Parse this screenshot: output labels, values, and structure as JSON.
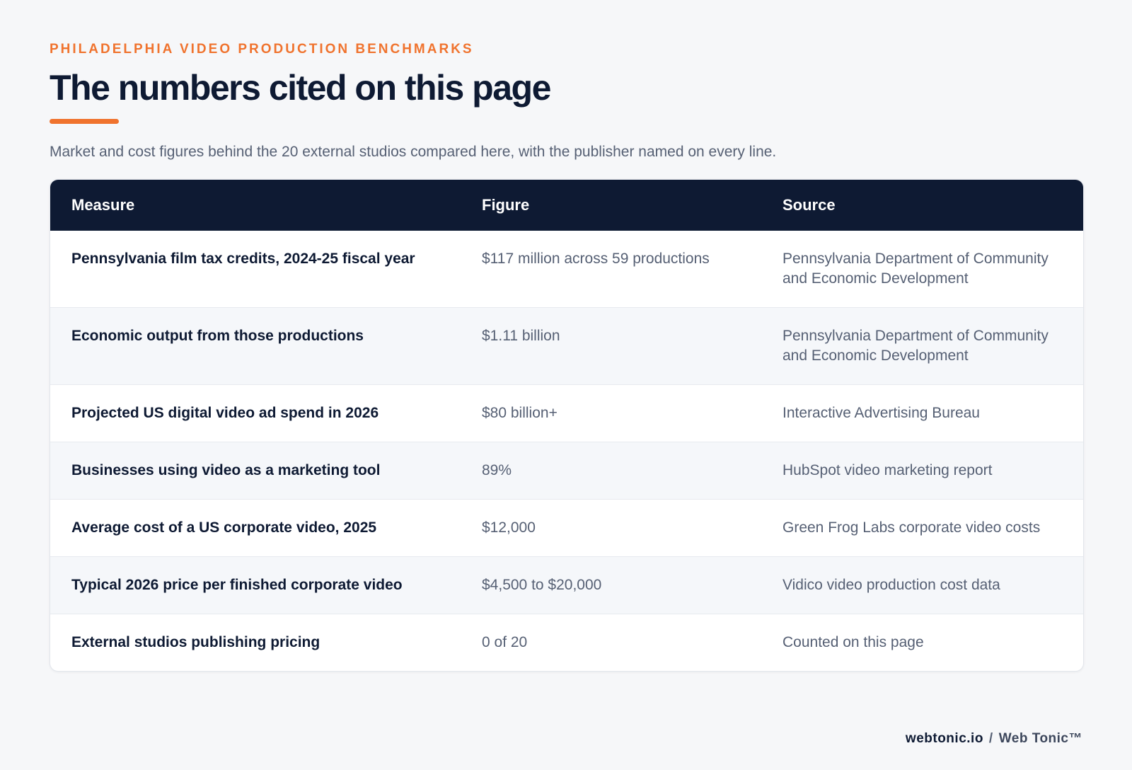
{
  "header": {
    "eyebrow": "PHILADELPHIA VIDEO PRODUCTION BENCHMARKS",
    "title": "The numbers cited on this page",
    "subtitle": "Market and cost figures behind the 20 external studios compared here, with the publisher named on every line."
  },
  "colors": {
    "accent": "#f0732e",
    "header_bg": "#0e1a33",
    "page_bg": "#f6f7f9"
  },
  "table": {
    "columns": [
      "Measure",
      "Figure",
      "Source"
    ],
    "rows": [
      {
        "measure": "Pennsylvania film tax credits, 2024-25 fiscal year",
        "figure": "$117 million across 59 productions",
        "source": "Pennsylvania Department of Community and Economic Development"
      },
      {
        "measure": "Economic output from those productions",
        "figure": "$1.11 billion",
        "source": "Pennsylvania Department of Community and Economic Development"
      },
      {
        "measure": "Projected US digital video ad spend in 2026",
        "figure": "$80 billion+",
        "source": "Interactive Advertising Bureau"
      },
      {
        "measure": "Businesses using video as a marketing tool",
        "figure": "89%",
        "source": "HubSpot video marketing report"
      },
      {
        "measure": "Average cost of a US corporate video, 2025",
        "figure": "$12,000",
        "source": "Green Frog Labs corporate video costs"
      },
      {
        "measure": "Typical 2026 price per finished corporate video",
        "figure": "$4,500 to $20,000",
        "source": "Vidico video production cost data"
      },
      {
        "measure": "External studios publishing pricing",
        "figure": "0 of 20",
        "source": "Counted on this page"
      }
    ]
  },
  "footer": {
    "domain": "webtonic.io",
    "separator": "/",
    "brand": "Web Tonic™"
  }
}
